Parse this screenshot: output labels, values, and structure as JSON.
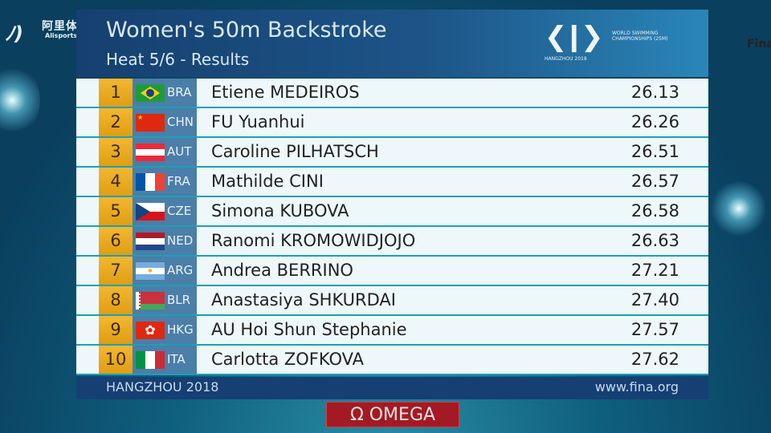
{
  "broadcaster_logo": {
    "name_cn": "阿里体育",
    "name_en": "Alisports.com"
  },
  "header": {
    "title": "Women's 50m Backstroke",
    "subtitle": "Heat 5/6 - Results",
    "event_logo": {
      "caption": "HANGZHOU 2018"
    },
    "fina_logo": {
      "name": "Fina",
      "sub": "WORLD SWIMMING CHAMPIONSHIPS (25M)"
    }
  },
  "results": [
    {
      "rank": "1",
      "code": "BRA",
      "name": "Etiene MEDEIROS",
      "time": "26.13",
      "flag": "brazil"
    },
    {
      "rank": "2",
      "code": "CHN",
      "name": "FU Yuanhui",
      "time": "26.26",
      "flag": "china"
    },
    {
      "rank": "3",
      "code": "AUT",
      "name": "Caroline PILHATSCH",
      "time": "26.51",
      "flag": "austria"
    },
    {
      "rank": "4",
      "code": "FRA",
      "name": "Mathilde CINI",
      "time": "26.57",
      "flag": "france"
    },
    {
      "rank": "5",
      "code": "CZE",
      "name": "Simona KUBOVA",
      "time": "26.58",
      "flag": "czechia"
    },
    {
      "rank": "6",
      "code": "NED",
      "name": "Ranomi KROMOWIDJOJO",
      "time": "26.63",
      "flag": "netherlands"
    },
    {
      "rank": "7",
      "code": "ARG",
      "name": "Andrea BERRINO",
      "time": "27.21",
      "flag": "argentina"
    },
    {
      "rank": "8",
      "code": "BLR",
      "name": "Anastasiya SHKURDAI",
      "time": "27.40",
      "flag": "belarus"
    },
    {
      "rank": "9",
      "code": "HKG",
      "name": "AU Hoi Shun Stephanie",
      "time": "27.57",
      "flag": "hong-kong"
    },
    {
      "rank": "10",
      "code": "ITA",
      "name": "Carlotta ZOFKOVA",
      "time": "27.62",
      "flag": "italy"
    }
  ],
  "footer": {
    "venue": "HANGZHOU 2018",
    "url": "www.fina.org"
  },
  "sponsor": {
    "label": "Ω OMEGA"
  },
  "colors": {
    "header": "#1d5487",
    "rank": "#f2b731",
    "nation": "#4b7ea8",
    "footer": "#163f73",
    "sponsor": "#a31a24"
  }
}
